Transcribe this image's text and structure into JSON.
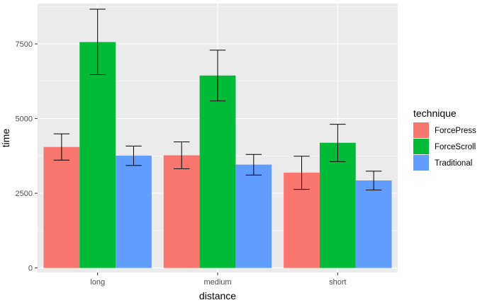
{
  "chart_data": {
    "type": "bar",
    "xlabel": "distance",
    "ylabel": "time",
    "categories": [
      "long",
      "medium",
      "short"
    ],
    "yticks": [
      0,
      2500,
      5000,
      7500
    ],
    "ytick_labels": [
      "0",
      "2500",
      "5000",
      "7500"
    ],
    "ylim": [
      -150,
      8850
    ],
    "grid": true,
    "legend": {
      "title": "technique",
      "placement": "right"
    },
    "series": [
      {
        "name": "ForcePress",
        "color": "#F8766D",
        "values": [
          4050,
          3770,
          3190
        ],
        "error_low": [
          3610,
          3320,
          2630
        ],
        "error_high": [
          4490,
          4220,
          3740
        ]
      },
      {
        "name": "ForceScroll",
        "color": "#00BA38",
        "values": [
          7560,
          6440,
          4190
        ],
        "error_low": [
          6470,
          5590,
          3560
        ],
        "error_high": [
          8660,
          7290,
          4810
        ]
      },
      {
        "name": "Traditional",
        "color": "#619CFF",
        "values": [
          3760,
          3460,
          2930
        ],
        "error_low": [
          3430,
          3110,
          2610
        ],
        "error_high": [
          4080,
          3800,
          3240
        ]
      }
    ]
  }
}
